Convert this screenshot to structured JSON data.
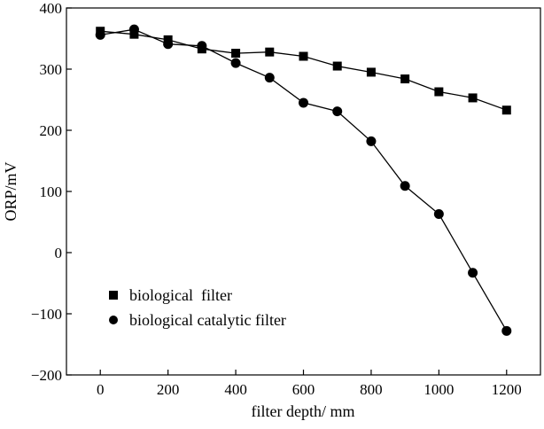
{
  "chart_data": {
    "type": "line",
    "title": "",
    "xlabel": "filter depth/ mm",
    "ylabel": "ORP/mV",
    "xlim": [
      -100,
      1300
    ],
    "ylim": [
      -200,
      400
    ],
    "xticks": [
      0,
      200,
      400,
      600,
      800,
      1000,
      1200
    ],
    "yticks": [
      -200,
      -100,
      0,
      100,
      200,
      300,
      400
    ],
    "xtick_labels": [
      "0",
      "200",
      "400",
      "600",
      "800",
      "1000",
      "1200"
    ],
    "ytick_labels": [
      "−200",
      "−100",
      "0",
      "100",
      "200",
      "300",
      "400"
    ],
    "grid": false,
    "legend_position": "bottom-left",
    "x": [
      0,
      100,
      200,
      300,
      400,
      500,
      600,
      700,
      800,
      900,
      1000,
      1100,
      1200
    ],
    "series": [
      {
        "name": "biological  filter",
        "marker": "square",
        "color": "#000000",
        "values": [
          362,
          357,
          348,
          333,
          326,
          328,
          321,
          305,
          295,
          284,
          263,
          253,
          233
        ]
      },
      {
        "name": "biological catalytic filter",
        "marker": "circle",
        "color": "#000000",
        "values": [
          356,
          365,
          341,
          338,
          310,
          286,
          245,
          231,
          182,
          109,
          63,
          -33,
          -128
        ]
      }
    ]
  }
}
